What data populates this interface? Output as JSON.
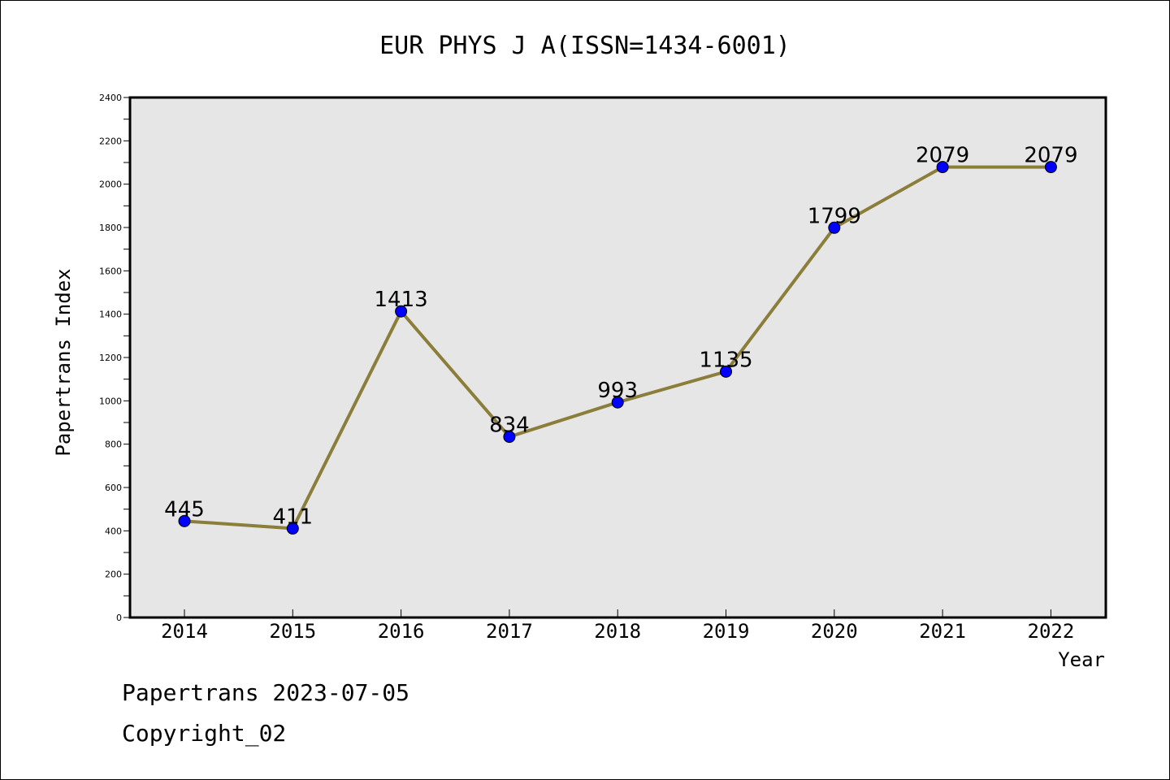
{
  "chart_data": {
    "type": "line",
    "title": "EUR PHYS J A(ISSN=1434-6001)",
    "xlabel": "Year",
    "ylabel": "Papertrans Index",
    "categories": [
      "2014",
      "2015",
      "2016",
      "2017",
      "2018",
      "2019",
      "2020",
      "2021",
      "2022"
    ],
    "series": [
      {
        "values": [
          445,
          411,
          1413,
          834,
          993,
          1135,
          1799,
          2079,
          2079
        ]
      }
    ],
    "ylim": [
      0,
      2400
    ],
    "yticks": [
      0,
      200,
      400,
      600,
      800,
      1000,
      1200,
      1400,
      1600,
      1800,
      2000,
      2200,
      2400
    ],
    "grid": false,
    "legend": "none",
    "colors": {
      "line": "#8b7d3a",
      "marker": "#0000ff",
      "plot_background": "#e6e6e6"
    }
  },
  "footer": {
    "line1": "Papertrans 2023-07-05",
    "line2": "Copyright_02"
  }
}
